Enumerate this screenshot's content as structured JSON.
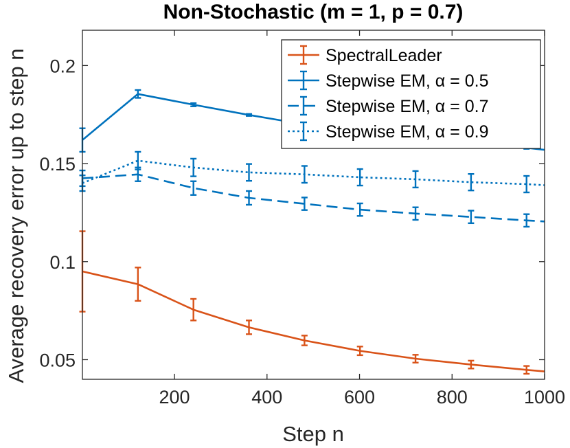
{
  "chart_data": {
    "type": "line",
    "title": "Non-Stochastic (m = 1, p = 0.7)",
    "xlabel": "Step n",
    "ylabel": "Average recovery error up to step n",
    "xlim": [
      1,
      1000
    ],
    "ylim": [
      0.04,
      0.218
    ],
    "xticks": [
      200,
      400,
      600,
      800,
      1000
    ],
    "xtick_labels": [
      "200",
      "400",
      "600",
      "800",
      "1000"
    ],
    "yticks": [
      0.05,
      0.1,
      0.15,
      0.2
    ],
    "ytick_labels": [
      "0.05",
      "0.1",
      "0.15",
      "0.2"
    ],
    "grid": false,
    "legend_position": "top-right",
    "x": [
      1,
      121,
      241,
      361,
      481,
      601,
      721,
      841,
      961,
      1000
    ],
    "series": [
      {
        "name": "SpectralLeader",
        "color": "#D95319",
        "style": "solid",
        "values": [
          0.095,
          0.0885,
          0.0755,
          0.0665,
          0.0598,
          0.0545,
          0.0505,
          0.0475,
          0.0448,
          0.044
        ],
        "errors": [
          0.0205,
          0.0085,
          0.0055,
          0.0035,
          0.0025,
          0.0022,
          0.002,
          0.002,
          0.002,
          null
        ]
      },
      {
        "name": "Stepwise EM, α = 0.5",
        "color": "#0072BD",
        "style": "solid",
        "values": [
          0.162,
          0.1855,
          0.18,
          0.1748,
          0.17,
          0.1665,
          0.1635,
          0.1605,
          0.158,
          0.157
        ],
        "errors": [
          0.006,
          0.002,
          0.0008,
          0.0005,
          0.0005,
          0.0005,
          0.0005,
          0.0005,
          0.0005,
          null
        ]
      },
      {
        "name": "Stepwise EM, α = 0.7",
        "color": "#0072BD",
        "style": "dashed",
        "values": [
          0.1425,
          0.1445,
          0.1375,
          0.1325,
          0.1295,
          0.1265,
          0.1245,
          0.1228,
          0.121,
          0.1205
        ],
        "errors": [
          0.004,
          0.0035,
          0.0035,
          0.0035,
          0.0032,
          0.0032,
          0.0032,
          0.0032,
          0.0032,
          null
        ]
      },
      {
        "name": "Stepwise EM, α = 0.9",
        "color": "#0072BD",
        "style": "dotted",
        "values": [
          0.14,
          0.1515,
          0.148,
          0.1455,
          0.1445,
          0.143,
          0.142,
          0.1405,
          0.1395,
          0.139
        ],
        "errors": [
          0.004,
          0.0045,
          0.0045,
          0.0043,
          0.0043,
          0.0042,
          0.0042,
          0.0042,
          0.0042,
          null
        ]
      }
    ]
  }
}
